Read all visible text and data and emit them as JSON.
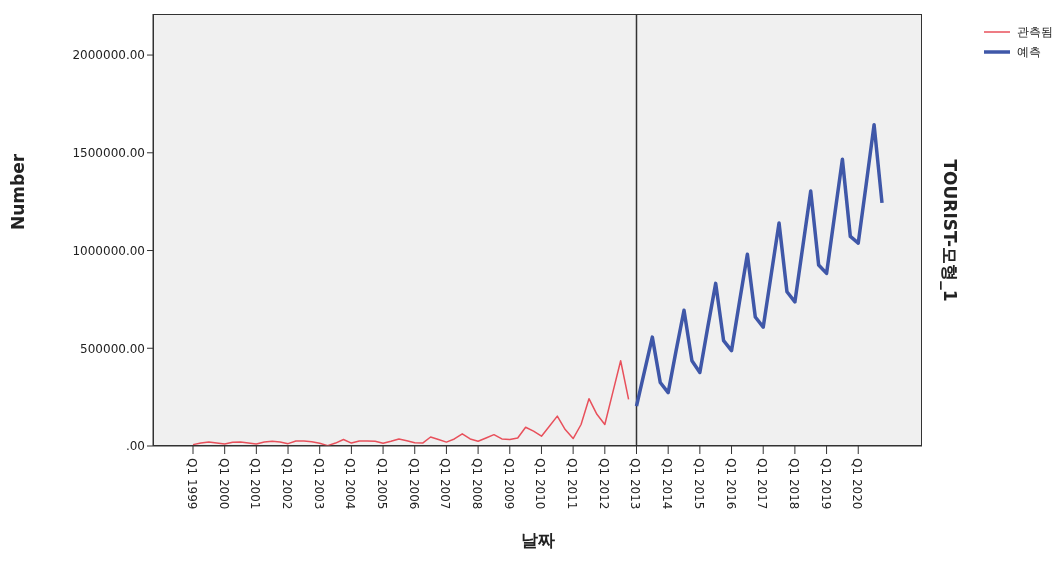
{
  "chart_data": {
    "type": "line",
    "xlabel": "날짜",
    "ylabel": "Number",
    "annotations": [
      "TOURIST-모형_1"
    ],
    "categories": [
      "Q1 1999",
      null,
      null,
      null,
      "Q1 2000",
      null,
      null,
      null,
      "Q1 2001",
      null,
      null,
      null,
      "Q1 2002",
      null,
      null,
      null,
      "Q1 2003",
      null,
      null,
      null,
      "Q1 2004",
      null,
      null,
      null,
      "Q1 2005",
      null,
      null,
      null,
      "Q1 2006",
      null,
      null,
      null,
      "Q1 2007",
      null,
      null,
      null,
      "Q1 2008",
      null,
      null,
      null,
      "Q1 2009",
      null,
      null,
      null,
      "Q1 2010",
      null,
      null,
      null,
      "Q1 2011",
      null,
      null,
      null,
      "Q1 2012",
      null,
      null,
      null,
      "Q1 2013",
      null,
      null,
      null,
      "Q1 2014",
      null,
      null,
      null,
      "Q1 2015",
      null,
      null,
      null,
      "Q1 2016",
      null,
      null,
      null,
      "Q1 2017",
      null,
      null,
      null,
      "Q1 2018",
      null,
      null,
      null,
      "Q1 2019",
      null,
      null,
      null,
      "Q1 2020",
      null,
      null,
      null
    ],
    "series": [
      {
        "name": "관측됨",
        "color": "#e8505b",
        "values": [
          7000,
          15000,
          20000,
          15000,
          10000,
          19000,
          20000,
          15000,
          10000,
          20000,
          24000,
          20000,
          12000,
          26000,
          26000,
          22000,
          14000,
          2000,
          15000,
          33000,
          15000,
          26000,
          26000,
          24000,
          14000,
          24000,
          36000,
          27000,
          17000,
          15000,
          46000,
          33000,
          20000,
          36000,
          62000,
          36000,
          24000,
          41000,
          58000,
          36000,
          33000,
          41000,
          96000,
          76000,
          50000,
          101000,
          153000,
          84000,
          38000,
          110000,
          242000,
          162000,
          110000,
          273000,
          436000,
          239000,
          null,
          null,
          null,
          null,
          null,
          null,
          null,
          null,
          null,
          null,
          null,
          null,
          null,
          null,
          null,
          null,
          null,
          null,
          null,
          null,
          null,
          null,
          null,
          null,
          null,
          null,
          null,
          null,
          null,
          null,
          null,
          null
        ]
      },
      {
        "name": "예측",
        "color": "#3f57a8",
        "values": [
          null,
          null,
          null,
          null,
          null,
          null,
          null,
          null,
          null,
          null,
          null,
          null,
          null,
          null,
          null,
          null,
          null,
          null,
          null,
          null,
          null,
          null,
          null,
          null,
          null,
          null,
          null,
          null,
          null,
          null,
          null,
          null,
          null,
          null,
          null,
          null,
          null,
          null,
          null,
          null,
          null,
          null,
          null,
          null,
          null,
          null,
          null,
          null,
          null,
          null,
          null,
          null,
          null,
          null,
          null,
          null,
          204000,
          380000,
          557000,
          325000,
          273000,
          488000,
          694000,
          436000,
          376000,
          608000,
          832000,
          539000,
          488000,
          737000,
          981000,
          660000,
          608000,
          875000,
          1141000,
          789000,
          737000,
          1021000,
          1304000,
          926000,
          883000,
          1175000,
          1467000,
          1072000,
          1038000,
          1338000,
          1644000,
          1244000
        ]
      }
    ],
    "ylim": [
      0,
      2210000
    ],
    "yticks": [
      {
        "value": 0,
        "label": ".00"
      },
      {
        "value": 500000,
        "label": "500000.00"
      },
      {
        "value": 1000000,
        "label": "1000000.00"
      },
      {
        "value": 1500000,
        "label": "1500000.00"
      },
      {
        "value": 2000000,
        "label": "2000000.00"
      }
    ],
    "ref_lines": [
      {
        "axis": "x",
        "value": "Q1 2013",
        "color": "#333333"
      }
    ],
    "legend": "top right",
    "marker": "none",
    "line_style": "solid"
  }
}
